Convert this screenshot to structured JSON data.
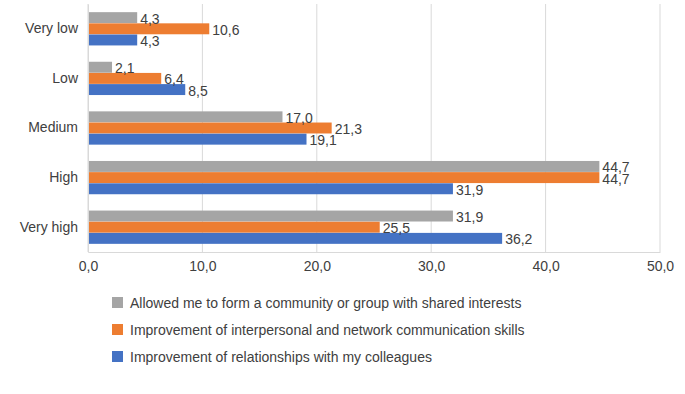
{
  "chart_data": {
    "type": "bar",
    "orientation": "horizontal",
    "categories": [
      "Very low",
      "Low",
      "Medium",
      "High",
      "Very high"
    ],
    "series": [
      {
        "name": "Allowed me to form a community or group with shared interests",
        "color": "#a5a5a5",
        "values": [
          4.3,
          2.1,
          17.0,
          44.7,
          31.9
        ],
        "value_labels": [
          "4,3",
          "2,1",
          "17,0",
          "44,7",
          "31,9"
        ]
      },
      {
        "name": "Improvement of interpersonal and network communication skills",
        "color": "#ed7d31",
        "values": [
          10.6,
          6.4,
          21.3,
          44.7,
          25.5
        ],
        "value_labels": [
          "10,6",
          "6,4",
          "21,3",
          "44,7",
          "25,5"
        ]
      },
      {
        "name": "Improvement of relationships with my colleagues",
        "color": "#4472c4",
        "values": [
          4.3,
          8.5,
          19.1,
          31.9,
          36.2
        ],
        "value_labels": [
          "4,3",
          "8,5",
          "19,1",
          "31,9",
          "36,2"
        ]
      }
    ],
    "xlim": [
      0,
      50
    ],
    "xticks": [
      {
        "value": 0,
        "label": "0,0"
      },
      {
        "value": 10,
        "label": "10,0"
      },
      {
        "value": 20,
        "label": "20,0"
      },
      {
        "value": 30,
        "label": "30,0"
      },
      {
        "value": 40,
        "label": "40,0"
      },
      {
        "value": 50,
        "label": "50,0"
      }
    ],
    "grid": true,
    "data_labels": true,
    "legend": "bottom"
  }
}
